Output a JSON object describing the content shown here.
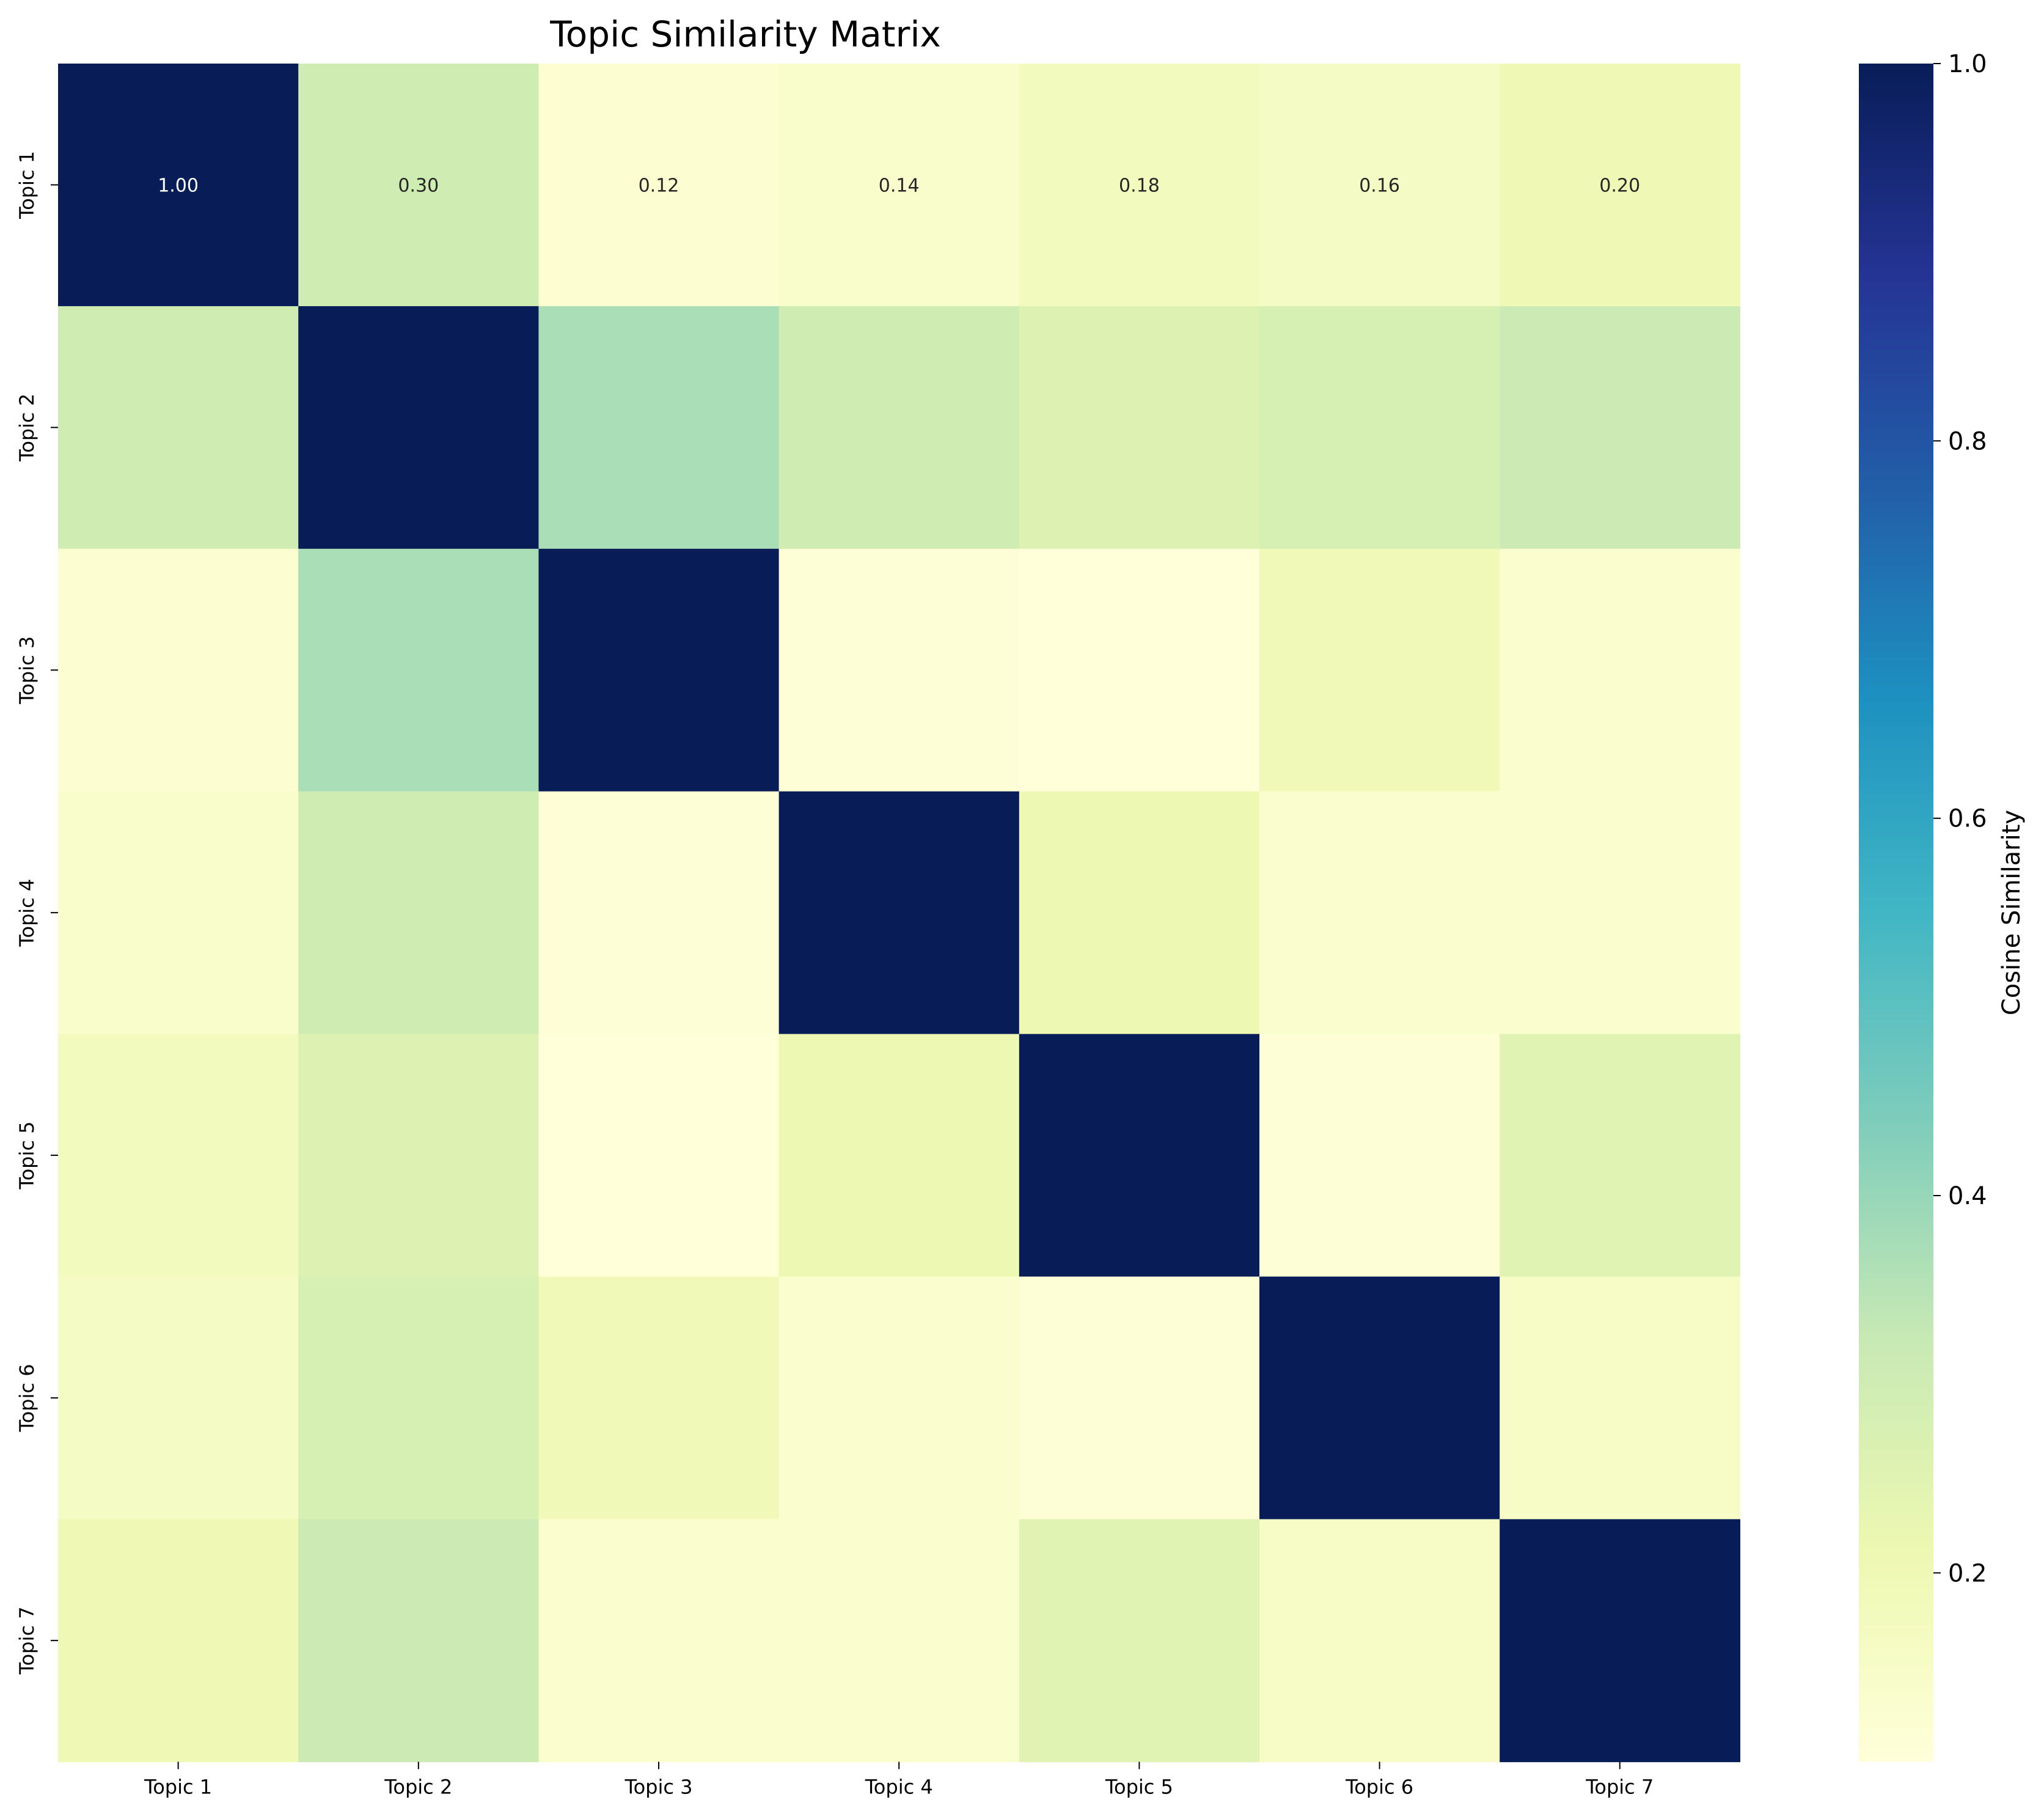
{
  "chart_data": {
    "type": "heatmap",
    "title": "Topic Similarity Matrix",
    "x_labels": [
      "Topic 1",
      "Topic 2",
      "Topic 3",
      "Topic 4",
      "Topic 5",
      "Topic 6",
      "Topic 7"
    ],
    "y_labels": [
      "Topic 1",
      "Topic 2",
      "Topic 3",
      "Topic 4",
      "Topic 5",
      "Topic 6",
      "Topic 7"
    ],
    "matrix": [
      [
        1.0,
        0.3,
        0.12,
        0.14,
        0.18,
        0.16,
        0.2
      ],
      [
        0.3,
        1.0,
        0.37,
        0.3,
        0.26,
        0.28,
        0.31
      ],
      [
        0.12,
        0.37,
        1.0,
        0.11,
        0.1,
        0.19,
        0.13
      ],
      [
        0.14,
        0.3,
        0.11,
        1.0,
        0.21,
        0.13,
        0.13
      ],
      [
        0.18,
        0.26,
        0.1,
        0.21,
        1.0,
        0.11,
        0.25
      ],
      [
        0.16,
        0.28,
        0.19,
        0.13,
        0.11,
        1.0,
        0.15
      ],
      [
        0.2,
        0.31,
        0.13,
        0.13,
        0.25,
        0.15,
        1.0
      ]
    ],
    "annotated_rows": [
      0
    ],
    "annotation_format": "0.00",
    "colormap": "YlGnBu",
    "colormap_stops": [
      "#ffffd9",
      "#edf8b1",
      "#c7e9b4",
      "#7fcdbb",
      "#41b6c4",
      "#1d91c0",
      "#225ea8",
      "#253494",
      "#081d58"
    ],
    "vmin": 0.1,
    "vmax": 1.0,
    "colorbar": {
      "label": "Cosine Similarity",
      "ticks": [
        0.2,
        0.4,
        0.6,
        0.8,
        1.0
      ],
      "tick_labels": [
        "0.2",
        "0.4",
        "0.6",
        "0.8",
        "1.0"
      ]
    }
  }
}
